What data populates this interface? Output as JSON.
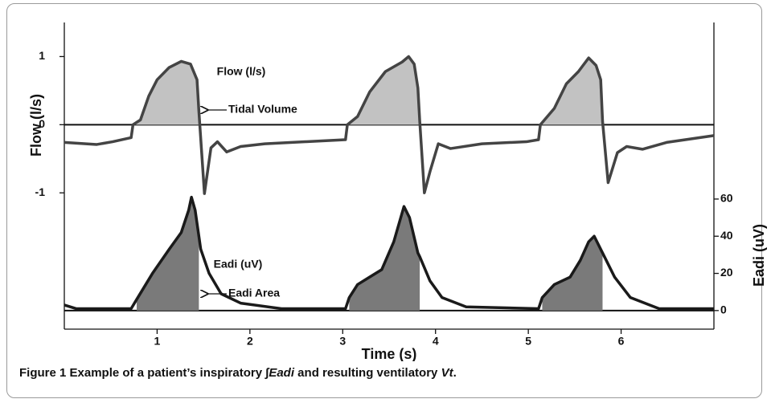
{
  "chart_data": {
    "type": "line",
    "xlabel": "Time (s)",
    "ylabel": "Flow (l/s)",
    "y2label": "Eadi (uV)",
    "xlim": [
      0,
      7
    ],
    "xticks": [
      1,
      2,
      3,
      4,
      5,
      6
    ],
    "ylim": [
      -3,
      1.5
    ],
    "yticks": [
      -1,
      0,
      1
    ],
    "y2lim": [
      -10,
      155
    ],
    "y2ticks": [
      0,
      20,
      40,
      60
    ],
    "annotations": [
      "Flow (l/s)",
      "Tidal Volume",
      "Eadi (uV)",
      "Eadi Area"
    ],
    "series": [
      {
        "name": "Flow (l/s)",
        "color": "#444444",
        "fill": "#c2c2c2",
        "x": [
          0,
          0.35,
          0.52,
          0.72,
          0.74,
          0.82,
          0.91,
          1.0,
          1.13,
          1.26,
          1.36,
          1.43,
          1.45,
          1.51,
          1.58,
          1.65,
          1.75,
          1.9,
          2.16,
          2.6,
          3.03,
          3.05,
          3.16,
          3.29,
          3.46,
          3.64,
          3.71,
          3.77,
          3.81,
          3.83,
          3.88,
          3.94,
          4.03,
          4.16,
          4.5,
          4.98,
          5.11,
          5.13,
          5.28,
          5.41,
          5.54,
          5.65,
          5.73,
          5.78,
          5.8,
          5.86,
          5.96,
          6.06,
          6.23,
          6.49,
          7.0
        ],
        "values": [
          -0.26,
          -0.29,
          -0.25,
          -0.19,
          0,
          0.07,
          0.42,
          0.66,
          0.84,
          0.93,
          0.89,
          0.66,
          0.2,
          -1.01,
          -0.34,
          -0.25,
          -0.4,
          -0.32,
          -0.28,
          -0.25,
          -0.22,
          0,
          0.12,
          0.48,
          0.78,
          0.92,
          1.0,
          0.89,
          0.54,
          0.05,
          -1.0,
          -0.69,
          -0.28,
          -0.35,
          -0.28,
          -0.25,
          -0.22,
          0,
          0.24,
          0.6,
          0.78,
          0.98,
          0.87,
          0.66,
          0.05,
          -0.85,
          -0.41,
          -0.32,
          -0.36,
          -0.26,
          -0.16
        ]
      },
      {
        "name": "Eadi (uV)",
        "color": "#1a1a1a",
        "fill": "#7a7a7a",
        "axis": "y2",
        "x": [
          0,
          0.13,
          0.72,
          0.78,
          0.95,
          1.13,
          1.26,
          1.34,
          1.37,
          1.41,
          1.45,
          1.47,
          1.56,
          1.69,
          1.9,
          2.34,
          3.03,
          3.07,
          3.16,
          3.29,
          3.42,
          3.55,
          3.66,
          3.72,
          3.81,
          3.83,
          3.94,
          4.07,
          4.33,
          5.11,
          5.15,
          5.28,
          5.45,
          5.56,
          5.65,
          5.71,
          5.8,
          5.82,
          5.93,
          6.1,
          6.41,
          7.0
        ],
        "values": [
          3,
          1,
          1,
          6,
          20,
          33,
          42,
          54,
          61,
          54,
          40,
          33,
          20,
          9,
          4,
          1,
          1,
          7,
          14,
          18,
          22,
          37,
          56,
          50,
          31,
          29,
          16,
          7,
          2,
          1,
          7,
          14,
          18,
          27,
          37,
          40,
          31,
          29,
          18,
          7,
          1,
          1
        ]
      }
    ]
  },
  "caption": {
    "label": "Figure 1",
    "parts": [
      "Example of a patient’s inspiratory ",
      "∫Eadi",
      " and resulting ventilatory ",
      "Vt",
      "."
    ]
  }
}
